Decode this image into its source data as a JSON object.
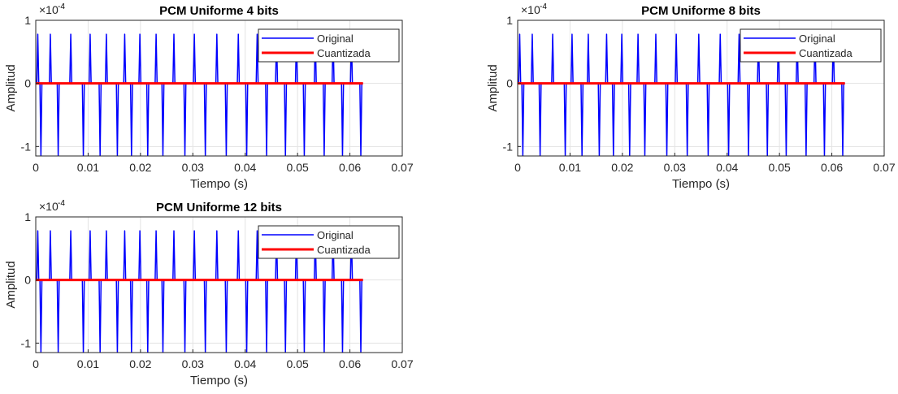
{
  "figure": {
    "background": "#ffffff",
    "axes_color": "#262626",
    "grid_color": "#e3e3e3"
  },
  "chart_data": [
    {
      "type": "line",
      "title": "PCM Uniforme 4 bits",
      "xlabel": "Tiempo (s)",
      "ylabel": "Amplitud",
      "y_exponent_label": "×10",
      "y_exponent": "-4",
      "xlim": [
        0,
        0.07
      ],
      "ylim": [
        -1.15,
        1
      ],
      "xticks": [
        "0",
        "0.01",
        "0.02",
        "0.03",
        "0.04",
        "0.05",
        "0.06",
        "0.07"
      ],
      "yticks": [
        "-1",
        "0",
        "1"
      ],
      "grid": true,
      "legend_position": "top-right",
      "series": [
        {
          "name": "Original",
          "color": "#0000ff",
          "pulse_levels": [
            0.78,
            -1.15
          ],
          "pulse_times": [
            0.0002,
            0.0008,
            0.0026,
            0.0041,
            0.0065,
            0.0089,
            0.0102,
            0.0121,
            0.0133,
            0.0154,
            0.0168,
            0.0181,
            0.0197,
            0.0212,
            0.0228,
            0.0241,
            0.0262,
            0.0283,
            0.0301,
            0.0322,
            0.0344,
            0.0362,
            0.0385,
            0.0401,
            0.0421,
            0.0439,
            0.0458,
            0.0475,
            0.0496,
            0.0511,
            0.0532,
            0.0549,
            0.0566,
            0.0584,
            0.0601,
            0.0619
          ]
        },
        {
          "name": "Cuantizada",
          "color": "#ff0000",
          "x": [
            0,
            0.0625
          ],
          "y": [
            0,
            0
          ]
        }
      ]
    },
    {
      "type": "line",
      "title": "PCM Uniforme 8 bits",
      "xlabel": "Tiempo (s)",
      "ylabel": "Amplitud",
      "y_exponent_label": "×10",
      "y_exponent": "-4",
      "xlim": [
        0,
        0.07
      ],
      "ylim": [
        -1.15,
        1
      ],
      "xticks": [
        "0",
        "0.01",
        "0.02",
        "0.03",
        "0.04",
        "0.05",
        "0.06",
        "0.07"
      ],
      "yticks": [
        "-1",
        "0",
        "1"
      ],
      "grid": true,
      "legend_position": "top-right",
      "series": [
        {
          "name": "Original",
          "color": "#0000ff",
          "pulse_levels": [
            0.78,
            -1.15
          ],
          "pulse_times": [
            0.0002,
            0.0008,
            0.0026,
            0.0041,
            0.0065,
            0.0089,
            0.0102,
            0.0121,
            0.0133,
            0.0154,
            0.0168,
            0.0181,
            0.0197,
            0.0212,
            0.0228,
            0.0241,
            0.0262,
            0.0283,
            0.0301,
            0.0322,
            0.0344,
            0.0362,
            0.0385,
            0.0401,
            0.0421,
            0.0439,
            0.0458,
            0.0475,
            0.0496,
            0.0511,
            0.0532,
            0.0549,
            0.0566,
            0.0584,
            0.0601,
            0.0619
          ]
        },
        {
          "name": "Cuantizada",
          "color": "#ff0000",
          "x": [
            0,
            0.0625
          ],
          "y": [
            0,
            0
          ]
        }
      ]
    },
    {
      "type": "line",
      "title": "PCM Uniforme 12 bits",
      "xlabel": "Tiempo (s)",
      "ylabel": "Amplitud",
      "y_exponent_label": "×10",
      "y_exponent": "-4",
      "xlim": [
        0,
        0.07
      ],
      "ylim": [
        -1.15,
        1
      ],
      "xticks": [
        "0",
        "0.01",
        "0.02",
        "0.03",
        "0.04",
        "0.05",
        "0.06",
        "0.07"
      ],
      "yticks": [
        "-1",
        "0",
        "1"
      ],
      "grid": true,
      "legend_position": "top-right",
      "series": [
        {
          "name": "Original",
          "color": "#0000ff",
          "pulse_levels": [
            0.78,
            -1.15
          ],
          "pulse_times": [
            0.0002,
            0.0008,
            0.0026,
            0.0041,
            0.0065,
            0.0089,
            0.0102,
            0.0121,
            0.0133,
            0.0154,
            0.0168,
            0.0181,
            0.0197,
            0.0212,
            0.0228,
            0.0241,
            0.0262,
            0.0283,
            0.0301,
            0.0322,
            0.0344,
            0.0362,
            0.0385,
            0.0401,
            0.0421,
            0.0439,
            0.0458,
            0.0475,
            0.0496,
            0.0511,
            0.0532,
            0.0549,
            0.0566,
            0.0584,
            0.0601,
            0.0619
          ]
        },
        {
          "name": "Cuantizada",
          "color": "#ff0000",
          "x": [
            0,
            0.0625
          ],
          "y": [
            0,
            0
          ]
        }
      ]
    }
  ]
}
